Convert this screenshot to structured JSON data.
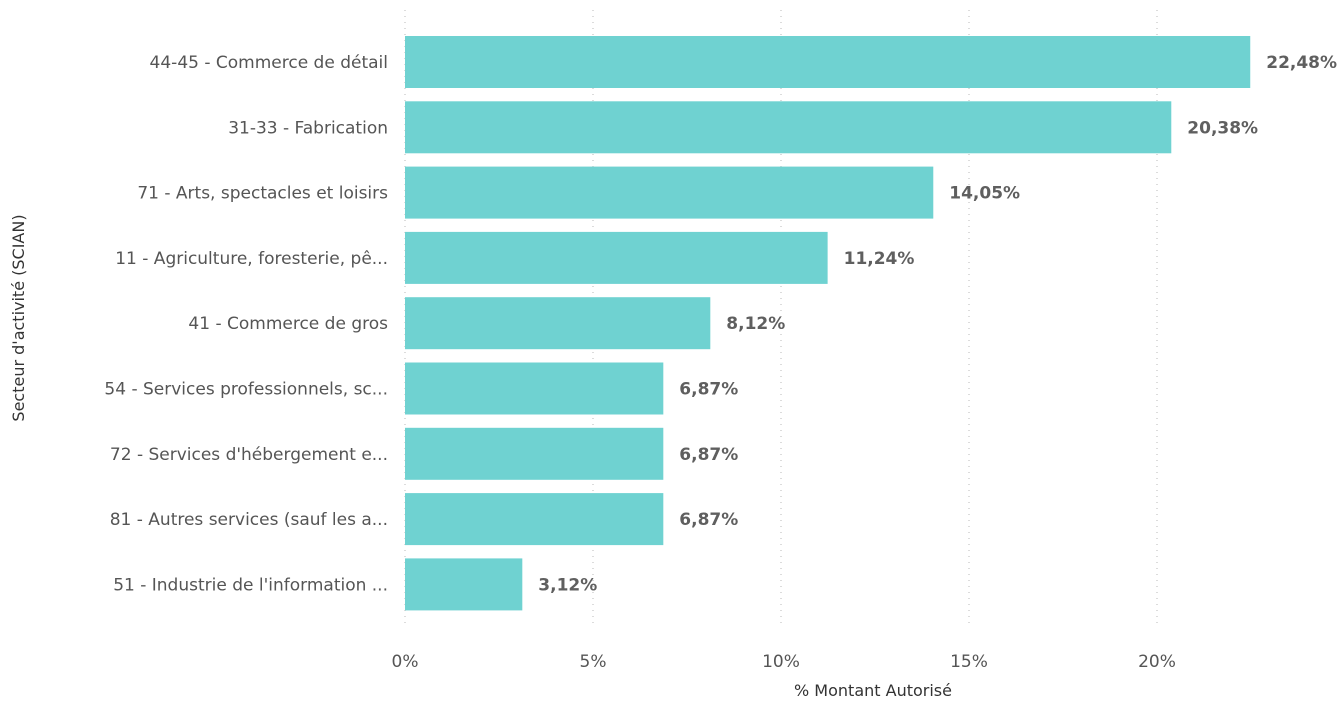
{
  "chart_data": {
    "type": "bar",
    "orientation": "horizontal",
    "categories": [
      "44-45 - Commerce de détail",
      "31-33 - Fabrication",
      "71 - Arts, spectacles et loisirs",
      "11 - Agriculture, foresterie, pê...",
      "41 - Commerce de gros",
      "54 - Services professionnels, sc...",
      "72 - Services d'hébergement e...",
      "81 - Autres services (sauf les a...",
      "51 - Industrie de l'information ..."
    ],
    "values": [
      22.48,
      20.38,
      14.05,
      11.24,
      8.12,
      6.87,
      6.87,
      6.87,
      3.12
    ],
    "data_labels": [
      "22,48%",
      "20,38%",
      "14,05%",
      "11,24%",
      "8,12%",
      "6,87%",
      "6,87%",
      "6,87%",
      "3,12%"
    ],
    "xticks": [
      0,
      5,
      10,
      15,
      20
    ],
    "xtick_labels": [
      "0%",
      "5%",
      "10%",
      "15%",
      "20%"
    ],
    "xlim": [
      0,
      25
    ],
    "xlabel": "% Montant Autorisé",
    "ylabel": "Secteur d'activité (SCIAN)",
    "grid": true,
    "legend": "none",
    "bar_color": "#6fd2d1"
  }
}
